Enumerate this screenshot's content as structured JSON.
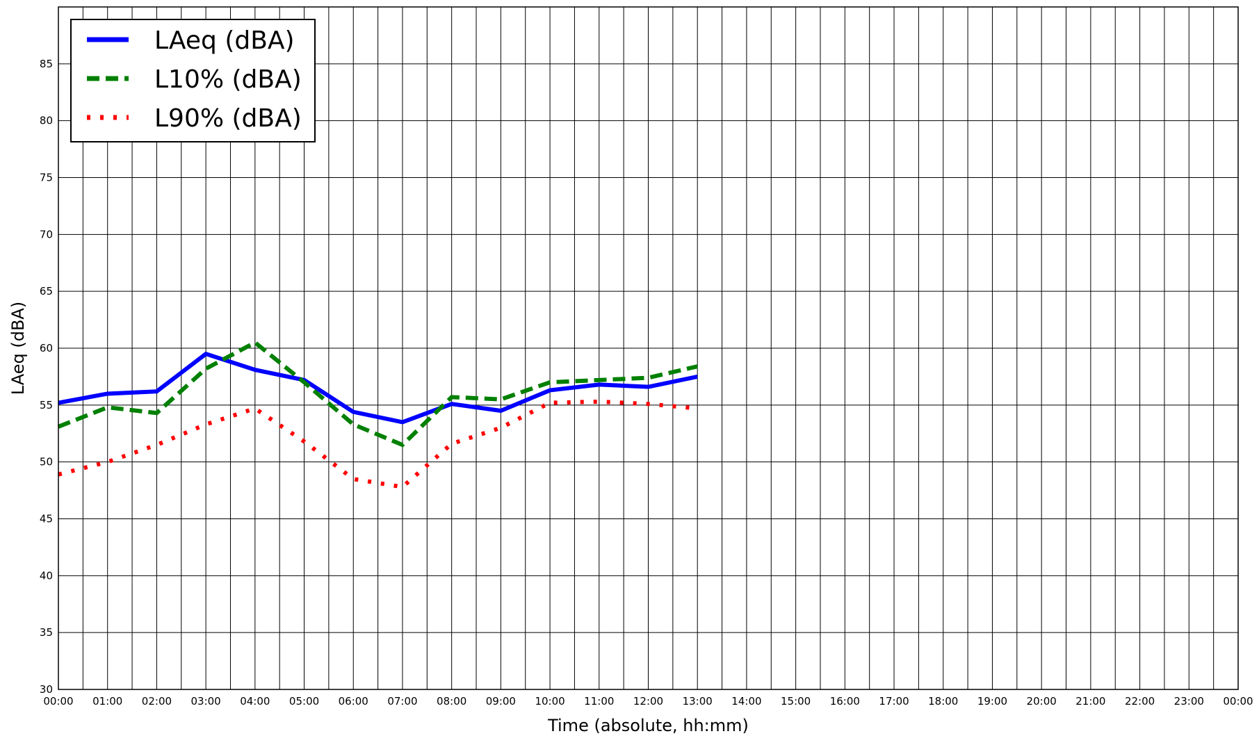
{
  "chart_data": {
    "type": "line",
    "xlabel": "Time (absolute, hh:mm)",
    "ylabel": "LAeq (dBA)",
    "ylim": [
      30,
      90
    ],
    "xlim": [
      "00:00",
      "24:00"
    ],
    "grid": true,
    "legend_position": "top-left",
    "x_tick_labels": [
      "00:00",
      "01:00",
      "02:00",
      "03:00",
      "04:00",
      "05:00",
      "06:00",
      "07:00",
      "08:00",
      "09:00",
      "10:00",
      "11:00",
      "12:00",
      "13:00",
      "14:00",
      "15:00",
      "16:00",
      "17:00",
      "18:00",
      "19:00",
      "20:00",
      "21:00",
      "22:00",
      "23:00",
      "00:00"
    ],
    "y_ticks": [
      30,
      35,
      40,
      45,
      50,
      55,
      60,
      65,
      70,
      75,
      80,
      85
    ],
    "x": [
      "00:00",
      "01:00",
      "02:00",
      "03:00",
      "04:00",
      "05:00",
      "06:00",
      "07:00",
      "08:00",
      "09:00",
      "10:00",
      "11:00",
      "12:00",
      "13:00"
    ],
    "series": [
      {
        "name": "LAeq (dBA)",
        "color": "#0000ff",
        "style": "solid",
        "values": [
          55.2,
          56.0,
          56.2,
          59.5,
          58.1,
          57.2,
          54.4,
          53.5,
          55.1,
          54.5,
          56.3,
          56.8,
          56.6,
          57.5
        ]
      },
      {
        "name": "L10% (dBA)",
        "color": "#008000",
        "style": "dashed",
        "values": [
          53.1,
          54.8,
          54.3,
          58.2,
          60.5,
          57.0,
          53.3,
          51.5,
          55.7,
          55.5,
          57.0,
          57.2,
          57.4,
          58.4
        ]
      },
      {
        "name": "L90% (dBA)",
        "color": "#ff0000",
        "style": "dotted",
        "values": [
          48.9,
          50.0,
          51.5,
          53.3,
          54.7,
          51.8,
          48.5,
          47.8,
          51.6,
          53.0,
          55.2,
          55.3,
          55.1,
          54.7
        ]
      }
    ]
  }
}
